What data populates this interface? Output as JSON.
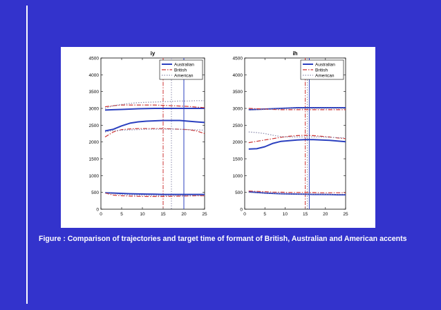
{
  "caption": "Figure : Comparison of trajectories and target time of formant of British, Australian and American accents",
  "colors": {
    "background": "#3333cc",
    "australian": "#2a3fbf",
    "british": "#cc3333",
    "american": "#8888aa"
  },
  "chart_data": [
    {
      "type": "line",
      "title": "iy",
      "xlim": [
        0,
        25
      ],
      "ylim": [
        0,
        4500
      ],
      "xticks": [
        0,
        5,
        10,
        15,
        20,
        25
      ],
      "yticks": [
        0,
        500,
        1000,
        1500,
        2000,
        2500,
        3000,
        3500,
        4000,
        4500
      ],
      "legend": "top-right",
      "x": [
        1,
        3,
        5,
        7,
        9,
        11,
        13,
        15,
        17,
        19,
        21,
        23,
        25
      ],
      "series": [
        {
          "name": "Australian",
          "style": "solid",
          "formants": [
            [
              2950,
              2960,
              2970,
              2980,
              2990,
              2995,
              3000,
              3000,
              3000,
              3000,
              3000,
              3000,
              3000
            ],
            [
              2330,
              2380,
              2480,
              2560,
              2600,
              2620,
              2630,
              2640,
              2640,
              2640,
              2620,
              2600,
              2580
            ],
            [
              490,
              480,
              470,
              460,
              455,
              450,
              445,
              440,
              440,
              440,
              440,
              440,
              440
            ]
          ]
        },
        {
          "name": "British",
          "style": "dashdot",
          "formants": [
            [
              3050,
              3080,
              3100,
              3100,
              3100,
              3100,
              3100,
              3090,
              3080,
              3070,
              3060,
              3040,
              3020
            ],
            [
              2150,
              2300,
              2370,
              2390,
              2400,
              2400,
              2400,
              2400,
              2390,
              2380,
              2370,
              2330,
              2250
            ],
            [
              480,
              420,
              400,
              390,
              385,
              380,
              380,
              380,
              385,
              390,
              395,
              400,
              400
            ]
          ]
        },
        {
          "name": "American",
          "style": "dotted",
          "formants": [
            [
              3000,
              3080,
              3120,
              3150,
              3170,
              3180,
              3190,
              3200,
              3210,
              3220,
              3220,
              3230,
              3230
            ],
            [
              2300,
              2340,
              2350,
              2360,
              2370,
              2380,
              2380,
              2380,
              2380,
              2380,
              2370,
              2360,
              2350
            ],
            [
              480,
              460,
              440,
              430,
              420,
              415,
              410,
              410,
              410,
              410,
              410,
              410,
              410
            ]
          ]
        }
      ],
      "target_times": [
        {
          "x": 15,
          "series": "British"
        },
        {
          "x": 17,
          "series": "American"
        },
        {
          "x": 20,
          "series": "Australian"
        }
      ]
    },
    {
      "type": "line",
      "title": "ih",
      "xlim": [
        0,
        25
      ],
      "ylim": [
        0,
        4500
      ],
      "xticks": [
        0,
        5,
        10,
        15,
        20,
        25
      ],
      "yticks": [
        0,
        500,
        1000,
        1500,
        2000,
        2500,
        3000,
        3500,
        4000,
        4500
      ],
      "legend": "top-right",
      "x": [
        1,
        3,
        5,
        7,
        9,
        11,
        13,
        15,
        17,
        19,
        21,
        23,
        25
      ],
      "series": [
        {
          "name": "Australian",
          "style": "solid",
          "formants": [
            [
              2960,
              2970,
              2980,
              2990,
              3000,
              3010,
              3020,
              3020,
              3020,
              3020,
              3020,
              3020,
              3020
            ],
            [
              1790,
              1800,
              1860,
              1960,
              2020,
              2040,
              2060,
              2070,
              2070,
              2060,
              2050,
              2030,
              2010
            ],
            [
              520,
              500,
              480,
              470,
              460,
              455,
              450,
              445,
              440,
              440,
              435,
              430,
              430
            ]
          ]
        },
        {
          "name": "British",
          "style": "dashdot",
          "formants": [
            [
              3000,
              2990,
              2980,
              2970,
              2960,
              2960,
              2960,
              2960,
              2960,
              2960,
              2960,
              2960,
              2960
            ],
            [
              1980,
              2020,
              2060,
              2100,
              2140,
              2170,
              2190,
              2200,
              2190,
              2170,
              2150,
              2120,
              2100
            ],
            [
              540,
              530,
              520,
              510,
              505,
              500,
              500,
              500,
              495,
              490,
              490,
              490,
              490
            ]
          ]
        },
        {
          "name": "American",
          "style": "dotted",
          "formants": [
            [
              2950,
              2960,
              2970,
              2980,
              2990,
              3000,
              3000,
              3000,
              3000,
              3000,
              3000,
              3000,
              3000
            ],
            [
              2300,
              2280,
              2250,
              2200,
              2160,
              2150,
              2150,
              2150,
              2150,
              2150,
              2140,
              2130,
              2120
            ],
            [
              500,
              490,
              480,
              470,
              460,
              455,
              450,
              450,
              450,
              445,
              440,
              440,
              440
            ]
          ]
        }
      ],
      "target_times": [
        {
          "x": 15,
          "series": "British"
        },
        {
          "x": 15.5,
          "series": "American"
        },
        {
          "x": 16,
          "series": "Australian"
        }
      ]
    }
  ]
}
